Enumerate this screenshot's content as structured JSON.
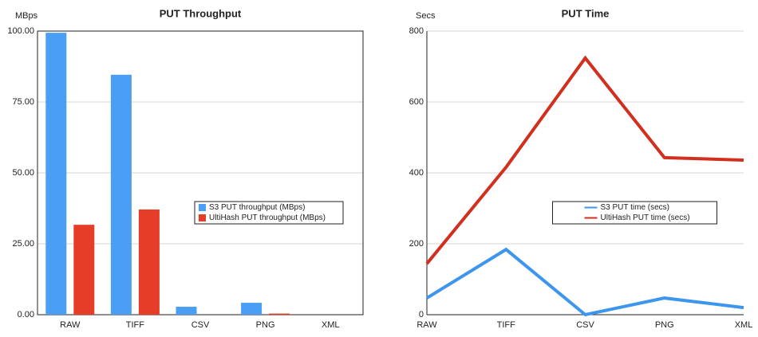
{
  "chart_data": [
    {
      "type": "bar",
      "title": "PUT Throughput",
      "y_label": "MBps",
      "categories": [
        "RAW",
        "TIFF",
        "CSV",
        "PNG",
        "XML"
      ],
      "series": [
        {
          "name": "S3 PUT throughput (MBps)",
          "color": "#4a9ff5",
          "values": [
            99.4,
            84.6,
            2.8,
            4.2,
            0
          ]
        },
        {
          "name": "UltiHash PUT throughput (MBps)",
          "color": "#e53d27",
          "values": [
            31.7,
            37.1,
            0,
            0.4,
            0
          ]
        }
      ],
      "ylim": [
        0,
        100
      ],
      "yticks": [
        {
          "value": 0,
          "label": "0.00"
        },
        {
          "value": 25,
          "label": "25.00"
        },
        {
          "value": 50,
          "label": "50.00"
        },
        {
          "value": 75,
          "label": "75.00"
        },
        {
          "value": 100,
          "label": "100.00"
        }
      ],
      "grid": true,
      "legend": "center"
    },
    {
      "type": "line",
      "title": "PUT Time",
      "y_label": "Secs",
      "categories": [
        "RAW",
        "TIFF",
        "CSV",
        "PNG",
        "XML"
      ],
      "series": [
        {
          "name": "S3 PUT time (secs)",
          "color": "#3d95ee",
          "values": [
            47,
            184,
            0,
            47,
            20
          ]
        },
        {
          "name": "UltiHash PUT time (secs)",
          "color": "#d2301f",
          "values": [
            144,
            416,
            724,
            443,
            436
          ]
        }
      ],
      "ylim": [
        0,
        800
      ],
      "yticks": [
        0,
        200,
        400,
        600,
        800
      ],
      "grid": true,
      "legend": "center"
    }
  ]
}
